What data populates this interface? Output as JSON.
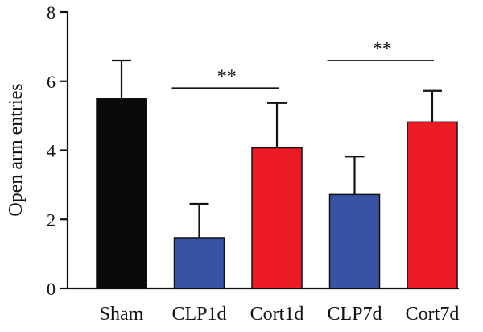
{
  "chart_data": {
    "type": "bar",
    "title": "",
    "xlabel": "",
    "ylabel": "Open arm entries",
    "ylim": [
      0,
      8
    ],
    "yticks": [
      0,
      2,
      4,
      6,
      8
    ],
    "grid": false,
    "categories": [
      "Sham",
      "CLP1d",
      "Cort1d",
      "CLP7d",
      "Cort7d"
    ],
    "values": [
      5.5,
      1.47,
      4.07,
      2.72,
      4.82
    ],
    "errors": [
      1.1,
      0.98,
      1.3,
      1.1,
      0.9
    ],
    "colors": [
      "#0a0a0a",
      "#3853a4",
      "#ed1c24",
      "#3853a4",
      "#ed1c24"
    ],
    "significance": [
      {
        "from": 1,
        "to": 2,
        "label": "**",
        "y": 5.8
      },
      {
        "from": 3,
        "to": 4,
        "label": "**",
        "y": 6.6
      }
    ]
  }
}
